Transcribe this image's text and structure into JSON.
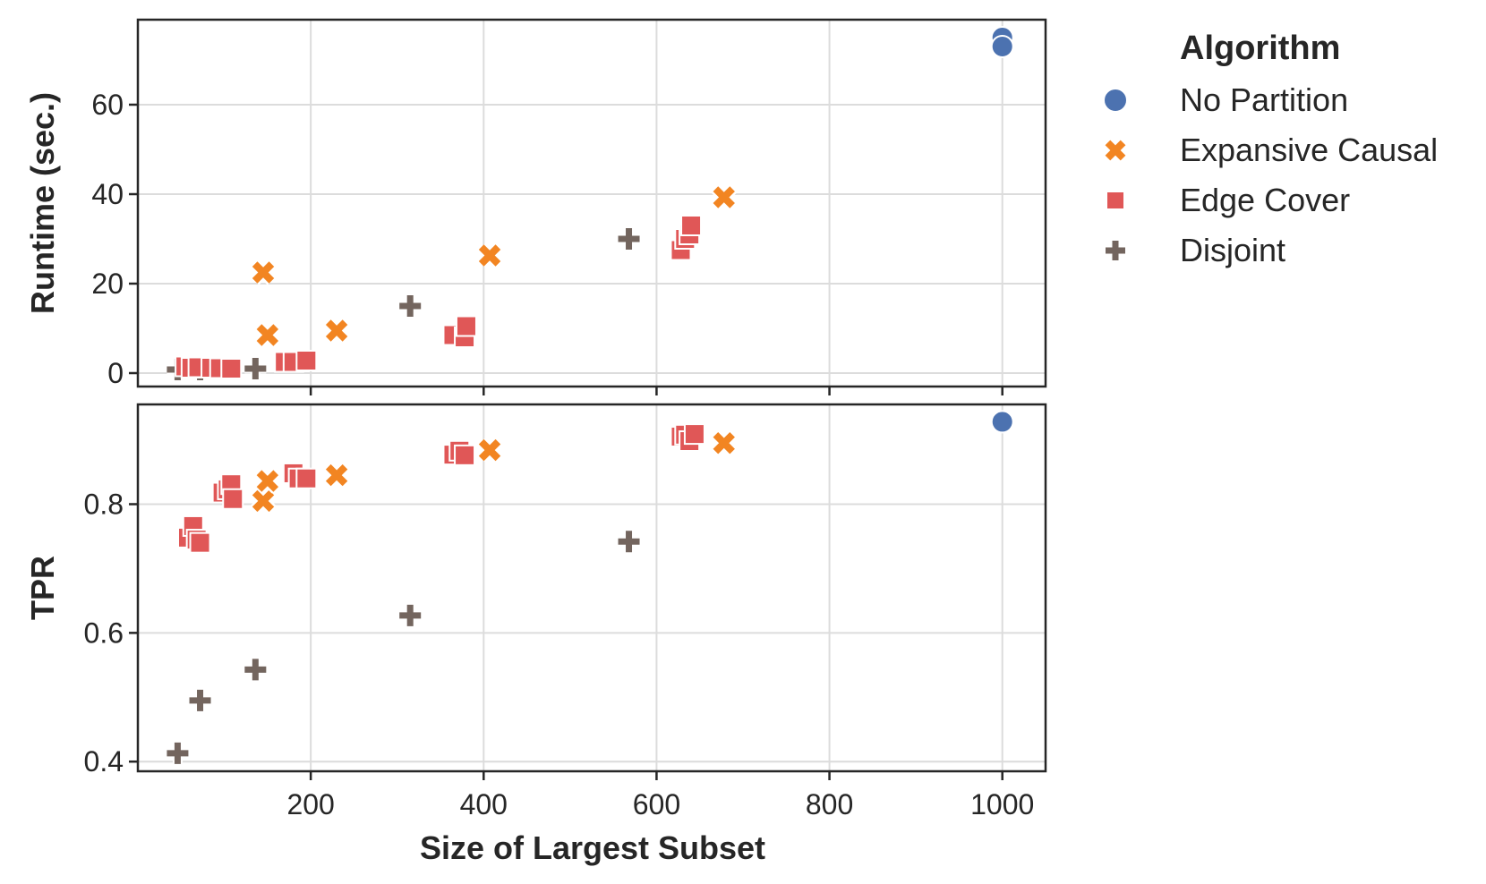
{
  "chart_data": {
    "type": "scatter",
    "legend_title": "Algorithm",
    "legend_position": "right",
    "xlabel": "Size of Largest Subset",
    "xlim": [
      0,
      1050
    ],
    "xticks": [
      200,
      400,
      600,
      800,
      1000
    ],
    "xtick_labels": [
      "200",
      "400",
      "600",
      "800",
      "1000"
    ],
    "colors": {
      "No Partition": "#4c72b0",
      "Expansive Causal": "#f28522",
      "Edge Cover": "#e05757",
      "Disjoint": "#73655e"
    },
    "legend": [
      {
        "name": "No Partition",
        "marker": "circle"
      },
      {
        "name": "Expansive Causal",
        "marker": "x"
      },
      {
        "name": "Edge Cover",
        "marker": "square"
      },
      {
        "name": "Disjoint",
        "marker": "plus"
      }
    ],
    "panels": [
      {
        "ylabel": "Runtime (sec.)",
        "ylim": [
          -3,
          79
        ],
        "yticks": [
          0,
          20,
          40,
          60
        ],
        "ytick_labels": [
          "0",
          "20",
          "40",
          "60"
        ],
        "grid": true,
        "series": [
          {
            "name": "Disjoint",
            "marker": "plus",
            "points": [
              [
                46,
                0.8
              ],
              [
                72,
                0.8
              ],
              [
                136,
                1.0
              ],
              [
                315,
                15
              ],
              [
                568,
                30
              ]
            ]
          },
          {
            "name": "Edge Cover",
            "marker": "square",
            "points": [
              [
                55,
                1.5
              ],
              [
                62,
                1.2
              ],
              [
                70,
                1.3
              ],
              [
                85,
                1.2
              ],
              [
                95,
                1.1
              ],
              [
                108,
                1.0
              ],
              [
                170,
                2.5
              ],
              [
                180,
                2.5
              ],
              [
                195,
                2.8
              ],
              [
                365,
                8.5
              ],
              [
                378,
                8.0
              ],
              [
                380,
                10.5
              ],
              [
                628,
                27.5
              ],
              [
                633,
                30
              ],
              [
                638,
                31
              ],
              [
                640,
                33
              ]
            ]
          },
          {
            "name": "Expansive Causal",
            "marker": "x",
            "points": [
              [
                145,
                22.5
              ],
              [
                150,
                8.5
              ],
              [
                230,
                9.5
              ],
              [
                407,
                26.3
              ],
              [
                678,
                39.3
              ]
            ]
          },
          {
            "name": "No Partition",
            "marker": "circle",
            "points": [
              [
                1000,
                75
              ],
              [
                1000,
                73
              ]
            ]
          }
        ]
      },
      {
        "ylabel": "TPR",
        "ylim": [
          0.385,
          0.955
        ],
        "yticks": [
          0.4,
          0.6,
          0.8
        ],
        "ytick_labels": [
          "0.4",
          "0.6",
          "0.8"
        ],
        "grid": true,
        "series": [
          {
            "name": "Disjoint",
            "marker": "plus",
            "points": [
              [
                46,
                0.413
              ],
              [
                72,
                0.495
              ],
              [
                136,
                0.543
              ],
              [
                315,
                0.627
              ],
              [
                568,
                0.742
              ]
            ]
          },
          {
            "name": "Edge Cover",
            "marker": "square",
            "points": [
              [
                58,
                0.748
              ],
              [
                64,
                0.766
              ],
              [
                68,
                0.745
              ],
              [
                72,
                0.74
              ],
              [
                98,
                0.818
              ],
              [
                104,
                0.823
              ],
              [
                108,
                0.831
              ],
              [
                110,
                0.808
              ],
              [
                180,
                0.848
              ],
              [
                186,
                0.84
              ],
              [
                195,
                0.84
              ],
              [
                365,
                0.877
              ],
              [
                372,
                0.883
              ],
              [
                378,
                0.876
              ],
              [
                628,
                0.905
              ],
              [
                633,
                0.908
              ],
              [
                638,
                0.898
              ],
              [
                644,
                0.909
              ]
            ]
          },
          {
            "name": "Expansive Causal",
            "marker": "x",
            "points": [
              [
                145,
                0.805
              ],
              [
                150,
                0.836
              ],
              [
                230,
                0.845
              ],
              [
                407,
                0.884
              ],
              [
                678,
                0.895
              ]
            ]
          },
          {
            "name": "No Partition",
            "marker": "circle",
            "points": [
              [
                1000,
                0.928
              ]
            ]
          }
        ]
      }
    ]
  }
}
